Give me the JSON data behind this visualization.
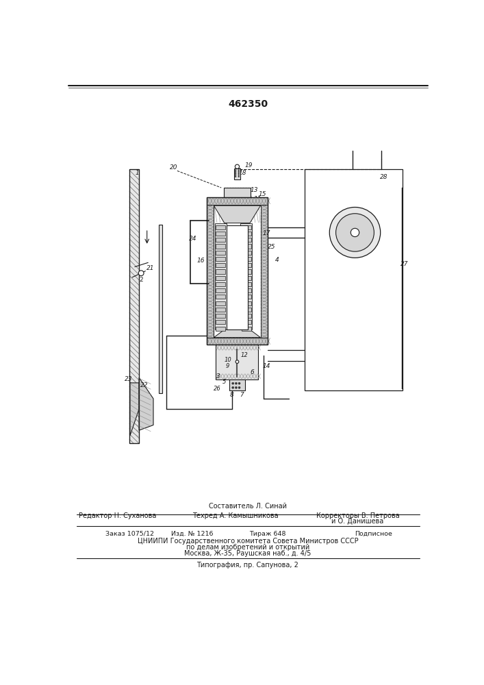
{
  "patent_number": "462350",
  "bg_color": "#ffffff",
  "line_color": "#1a1a1a",
  "hatch_color": "#555555",
  "footer": {
    "composer": "Составитель Л. Синай",
    "editor": "Редактор Н. Суханова",
    "techred": "Техред А. Камышникова",
    "correctors": "Корректоры В. Петрова",
    "correctors2": "и О. Данишева",
    "order": "Заказ 1075/12",
    "izd": "Изд. № 1216",
    "tirazh": "Тираж 648",
    "podpisnoe": "Подписное",
    "tsniip1": "ЦНИИПИ Государственного комитета Совета Министров СССР",
    "tsniip2": "по делам изобретений и открытий",
    "tsniip3": "Москва, Ж-35, Раушская наб., д. 4/5",
    "tipografia": "Типография, пр. Сапунова, 2"
  }
}
